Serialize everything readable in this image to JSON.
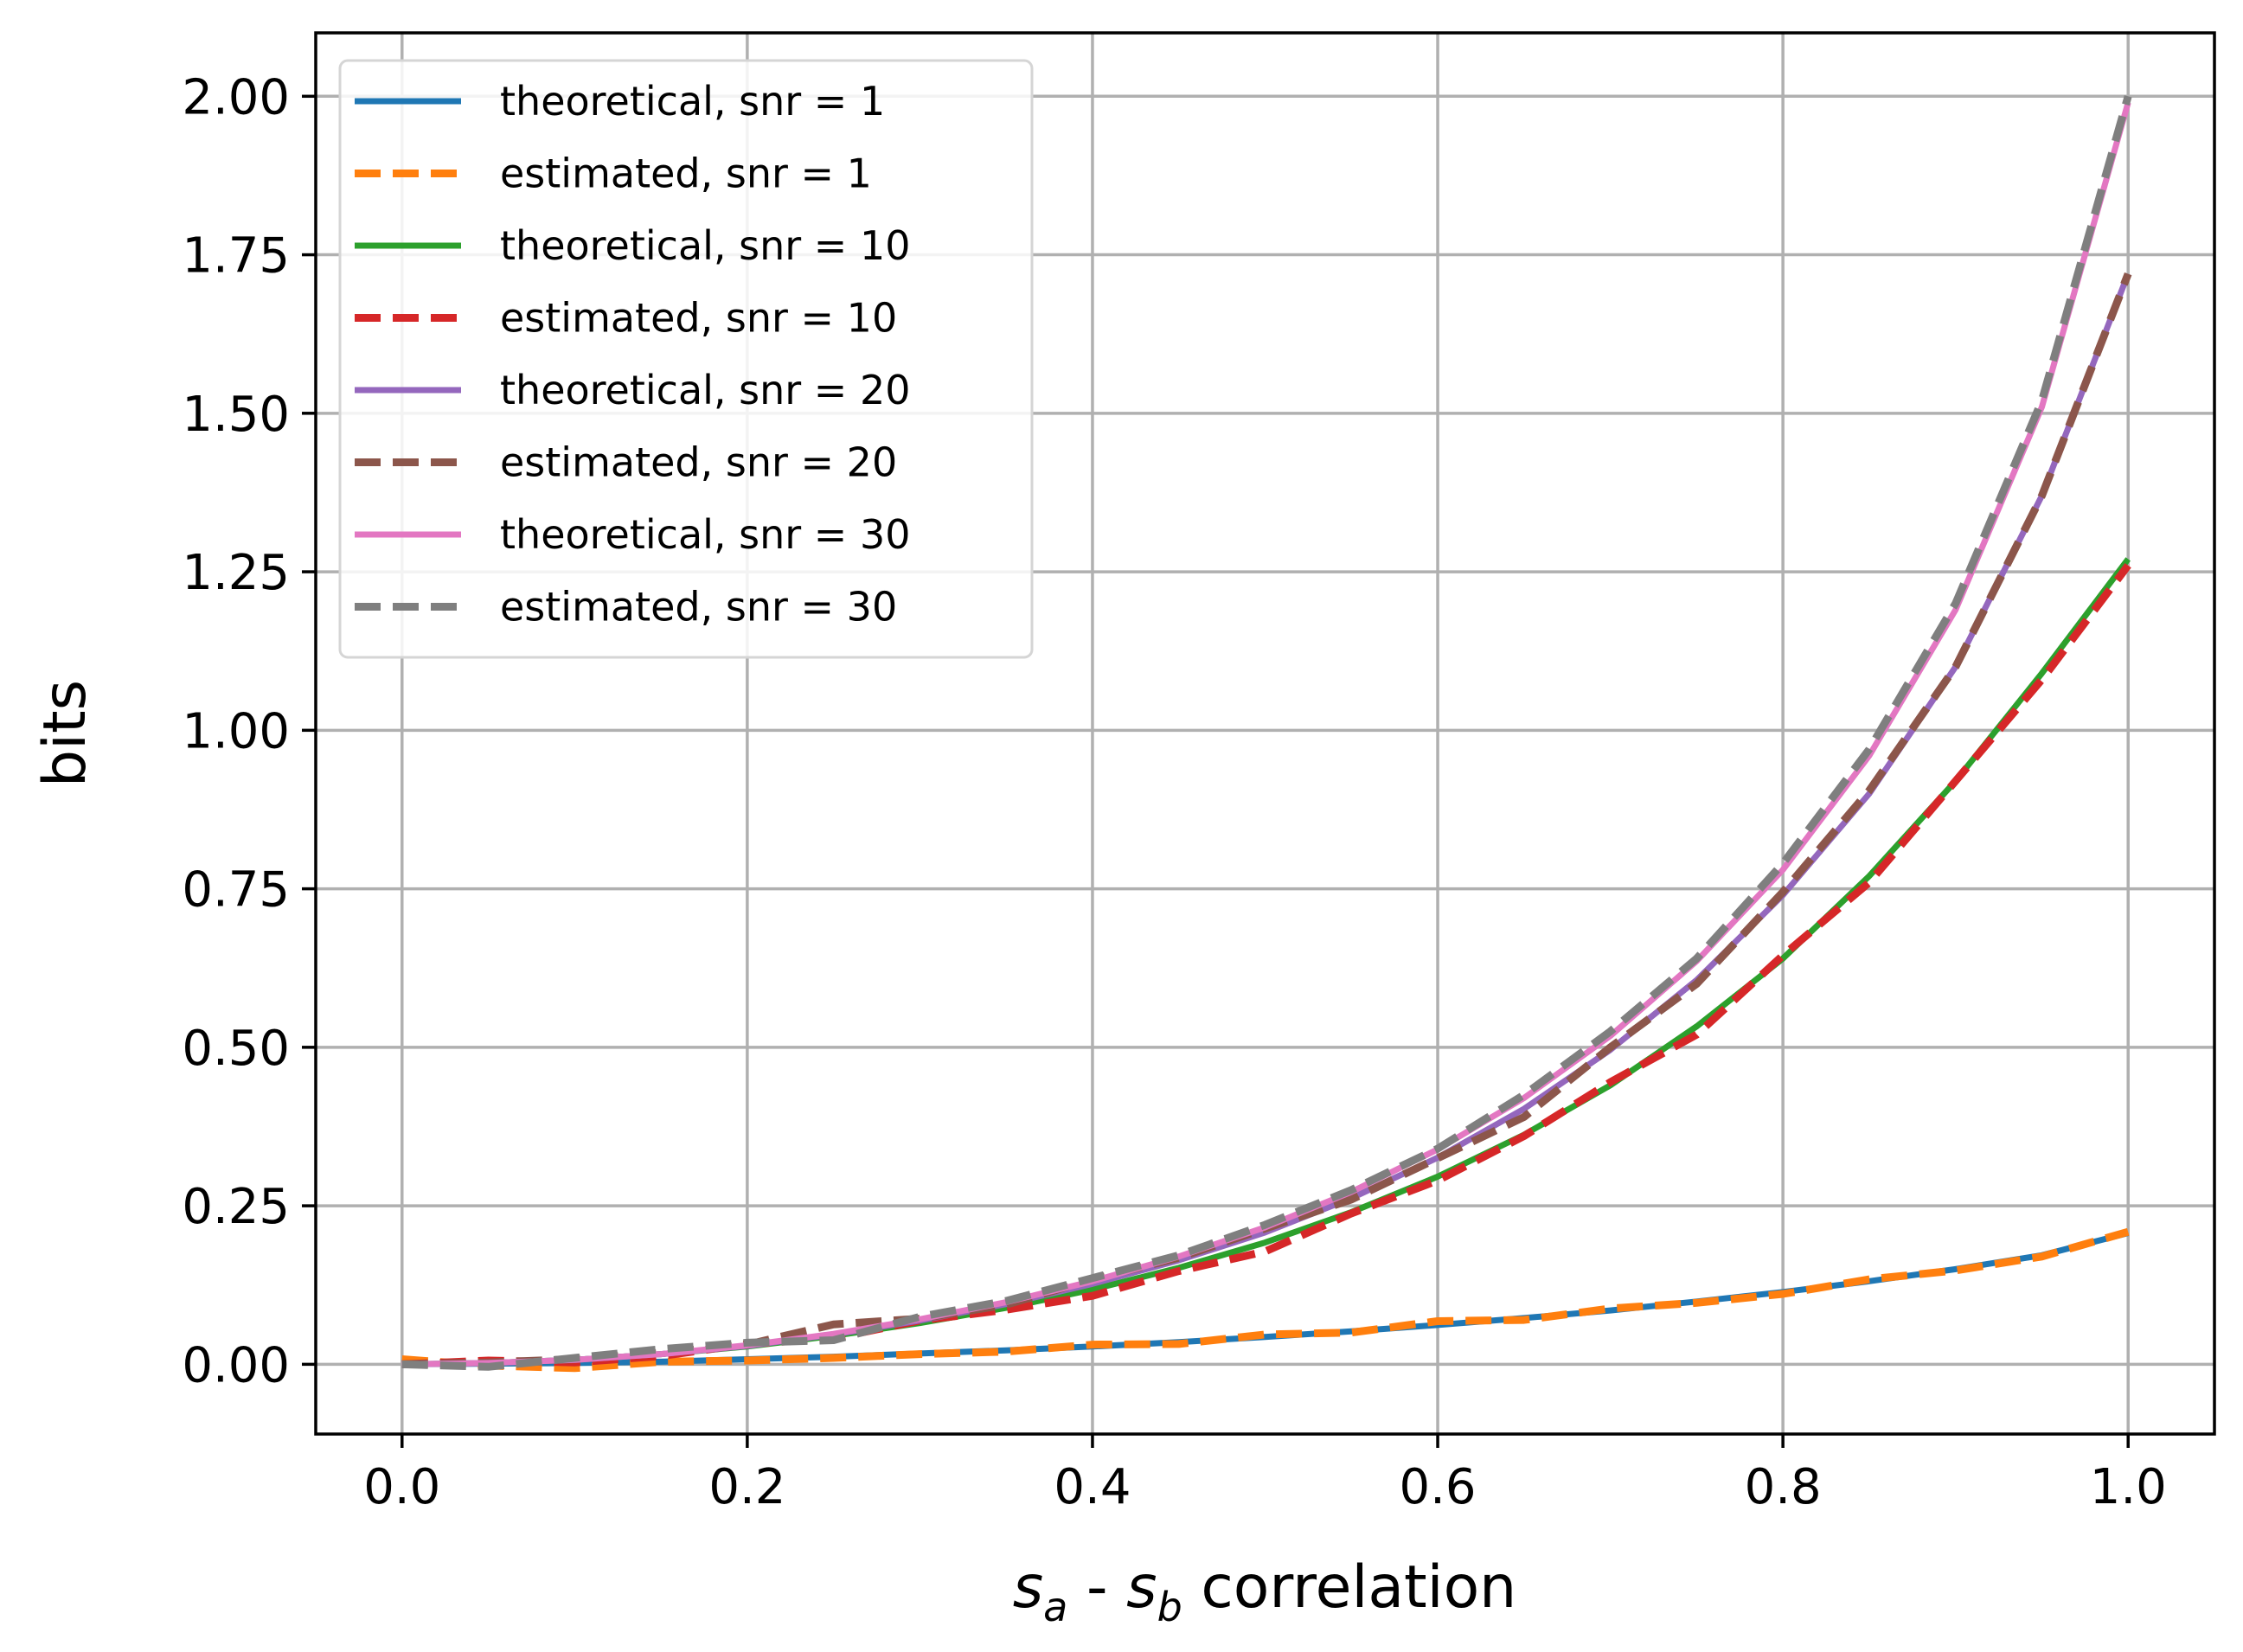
{
  "chart_data": {
    "type": "line",
    "title": "",
    "xlabel_parts": [
      "s",
      "a",
      " - ",
      "s",
      "b",
      " correlation"
    ],
    "ylabel": "bits",
    "xlim": [
      -0.05,
      1.05
    ],
    "ylim": [
      -0.11,
      2.1
    ],
    "grid": true,
    "legend_position": "upper-left",
    "xticks": [
      0.0,
      0.2,
      0.4,
      0.6,
      0.8,
      1.0
    ],
    "xtick_labels": [
      "0.0",
      "0.2",
      "0.4",
      "0.6",
      "0.8",
      "1.0"
    ],
    "yticks": [
      0.0,
      0.25,
      0.5,
      0.75,
      1.0,
      1.25,
      1.5,
      1.75,
      2.0
    ],
    "ytick_labels": [
      "0.00",
      "0.25",
      "0.50",
      "0.75",
      "1.00",
      "1.25",
      "1.50",
      "1.75",
      "2.00"
    ],
    "x": [
      0.0,
      0.05,
      0.1,
      0.15,
      0.2,
      0.25,
      0.3,
      0.35,
      0.4,
      0.45,
      0.5,
      0.55,
      0.6,
      0.65,
      0.7,
      0.75,
      0.8,
      0.85,
      0.9,
      0.95,
      1.0
    ],
    "series": [
      {
        "name": "theoretical, snr = 1",
        "color": "#1f77b4",
        "dashed": false,
        "values": [
          0.0,
          0.001,
          0.002,
          0.004,
          0.008,
          0.012,
          0.017,
          0.022,
          0.028,
          0.035,
          0.043,
          0.052,
          0.062,
          0.073,
          0.085,
          0.099,
          0.114,
          0.131,
          0.15,
          0.172,
          0.207
        ]
      },
      {
        "name": "estimated, snr = 1",
        "color": "#ff7f0e",
        "dashed": true,
        "values": [
          0.008,
          -0.002,
          -0.006,
          0.004,
          0.006,
          0.01,
          0.016,
          0.02,
          0.031,
          0.032,
          0.047,
          0.05,
          0.068,
          0.07,
          0.088,
          0.097,
          0.111,
          0.134,
          0.148,
          0.17,
          0.209
        ]
      },
      {
        "name": "theoretical, snr = 10",
        "color": "#2ca02c",
        "dashed": false,
        "values": [
          0.0,
          0.002,
          0.007,
          0.016,
          0.028,
          0.045,
          0.065,
          0.089,
          0.118,
          0.152,
          0.192,
          0.24,
          0.296,
          0.362,
          0.44,
          0.533,
          0.64,
          0.77,
          0.92,
          1.09,
          1.27
        ]
      },
      {
        "name": "estimated, snr = 10",
        "color": "#d62728",
        "dashed": true,
        "values": [
          0.0,
          0.006,
          0.003,
          0.013,
          0.032,
          0.041,
          0.069,
          0.086,
          0.108,
          0.147,
          0.178,
          0.238,
          0.29,
          0.36,
          0.445,
          0.52,
          0.645,
          0.76,
          0.92,
          1.08,
          1.26
        ]
      },
      {
        "name": "theoretical, snr = 20",
        "color": "#9467bd",
        "dashed": false,
        "values": [
          0.0,
          0.002,
          0.007,
          0.016,
          0.029,
          0.047,
          0.069,
          0.095,
          0.127,
          0.164,
          0.208,
          0.262,
          0.326,
          0.403,
          0.496,
          0.606,
          0.74,
          0.9,
          1.1,
          1.37,
          1.72
        ]
      },
      {
        "name": "estimated, snr = 20",
        "color": "#8c564b",
        "dashed": true,
        "values": [
          0.0,
          0.003,
          0.008,
          0.018,
          0.031,
          0.063,
          0.072,
          0.094,
          0.134,
          0.168,
          0.214,
          0.26,
          0.325,
          0.39,
          0.5,
          0.6,
          0.745,
          0.905,
          1.1,
          1.37,
          1.72
        ]
      },
      {
        "name": "theoretical, snr = 30",
        "color": "#e377c2",
        "dashed": false,
        "values": [
          0.0,
          0.002,
          0.007,
          0.016,
          0.03,
          0.048,
          0.071,
          0.098,
          0.131,
          0.17,
          0.216,
          0.272,
          0.339,
          0.42,
          0.518,
          0.636,
          0.78,
          0.96,
          1.19,
          1.51,
          1.99
        ]
      },
      {
        "name": "estimated, snr = 30",
        "color": "#7f7f7f",
        "dashed": true,
        "values": [
          0.0,
          -0.004,
          0.01,
          0.024,
          0.034,
          0.038,
          0.075,
          0.1,
          0.136,
          0.172,
          0.22,
          0.275,
          0.34,
          0.425,
          0.525,
          0.64,
          0.79,
          0.97,
          1.2,
          1.52,
          2.0
        ]
      }
    ]
  }
}
